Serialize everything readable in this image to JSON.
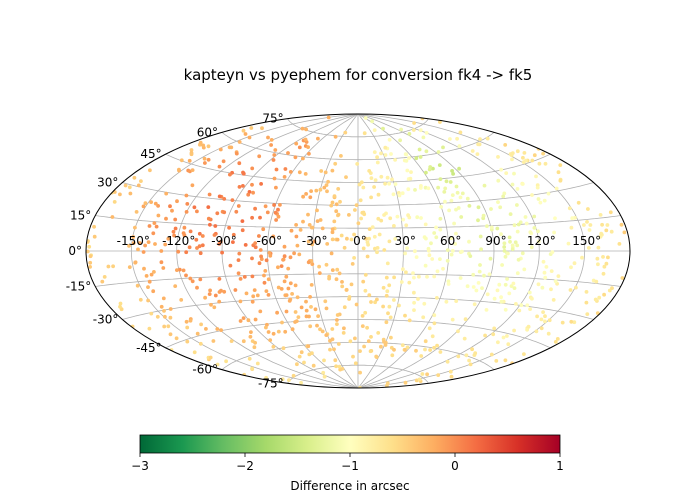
{
  "chart_data": {
    "type": "scatter",
    "projection": "aitoff",
    "title": "kapteyn vs pyephem for conversion fk4 -> fk5",
    "longitude_ticks": [
      "-150°",
      "-120°",
      "-90°",
      "-60°",
      "-30°",
      "0°",
      "30°",
      "60°",
      "90°",
      "120°",
      "150°"
    ],
    "longitude_tick_values": [
      -150,
      -120,
      -90,
      -60,
      -30,
      0,
      30,
      60,
      90,
      120,
      150
    ],
    "latitude_ticks": [
      "-75°",
      "-60°",
      "-45°",
      "-30°",
      "-15°",
      "0°",
      "15°",
      "30°",
      "45°",
      "60°",
      "75°"
    ],
    "latitude_tick_values": [
      -75,
      -60,
      -45,
      -30,
      -15,
      0,
      15,
      30,
      45,
      60,
      75
    ],
    "grid": true,
    "colorbar": {
      "label": "Difference in arcsec",
      "range": [
        -3,
        1
      ],
      "ticks": [
        "−3",
        "−2",
        "−1",
        "0",
        "1"
      ],
      "tick_values": [
        -3,
        -2,
        -1,
        0,
        1
      ],
      "colormap": "RdYlGn_r",
      "colormap_stops": [
        "#006837",
        "#1a9850",
        "#66bd63",
        "#a6d96a",
        "#d9ef8b",
        "#ffffbf",
        "#fee08b",
        "#fdae61",
        "#f46d43",
        "#d73027",
        "#a50026"
      ]
    },
    "points_description": "about 1000 sky positions; difference values range roughly -1.7 to 0.1 arcsec, trending from about 0.0 near longitude -150° to about -1.2 near longitude 90°"
  }
}
